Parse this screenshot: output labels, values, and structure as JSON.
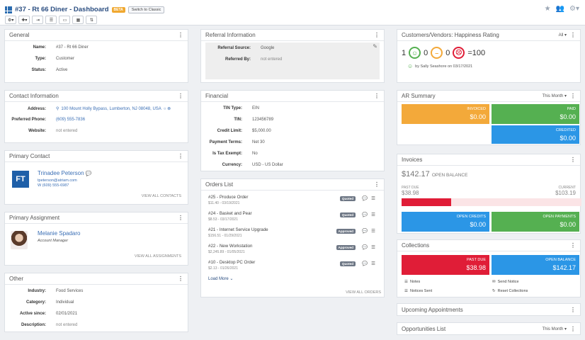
{
  "header": {
    "title": "#37 - Rt 66 Diner - Dashboard",
    "beta_badge": "BETA",
    "switch_button": "Switch to Classic",
    "toolbar": [
      "⚙▾",
      "✚▾",
      "⇥",
      "☰",
      "▭",
      "▦",
      "⇅"
    ]
  },
  "general": {
    "title": "General",
    "fields": [
      {
        "label": "Name:",
        "value": "#37 - Rt 66 Diner"
      },
      {
        "label": "Type:",
        "value": "Customer"
      },
      {
        "label": "Status:",
        "value": "Active"
      }
    ]
  },
  "contact_info": {
    "title": "Contact Information",
    "address_label": "Address:",
    "address": "100 Mount Holly Bypass, Lumberton, NJ 08048, USA",
    "phone_label": "Preferred Phone:",
    "phone": "(609) 555-7836",
    "website_label": "Website:",
    "website": "not entered"
  },
  "primary_contact": {
    "title": "Primary Contact",
    "initials": "FT",
    "name": "Trinadee Peterson",
    "email": "tpeterson@atriam.com",
    "phone": "W (609) 555-6987",
    "view_all": "VIEW ALL CONTACTS"
  },
  "primary_assignment": {
    "title": "Primary Assignment",
    "name": "Melanie Spadaro",
    "role": "Account Manager",
    "view_all": "VIEW ALL ASSIGNMENTS"
  },
  "other": {
    "title": "Other",
    "fields": [
      {
        "label": "Industry:",
        "value": "Food Services"
      },
      {
        "label": "Category:",
        "value": "Individual"
      },
      {
        "label": "Active since:",
        "value": "02/01/2021"
      },
      {
        "label": "Description:",
        "value": "not entered"
      }
    ]
  },
  "referral": {
    "title": "Referral Information",
    "source_label": "Referral Source:",
    "source": "Google",
    "by_label": "Referred By:",
    "by": "not entered"
  },
  "financial": {
    "title": "Financial",
    "fields": [
      {
        "label": "TIN Type:",
        "value": "EIN"
      },
      {
        "label": "TIN:",
        "value": "123456789"
      },
      {
        "label": "Credit Limit:",
        "value": "$5,000.00"
      },
      {
        "label": "Payment Terms:",
        "value": "Net 30"
      },
      {
        "label": "Is Tax Exempt:",
        "value": "No"
      },
      {
        "label": "Currency:",
        "value": "USD - US Dollar"
      }
    ]
  },
  "orders": {
    "title": "Orders List",
    "items": [
      {
        "name": "#25 - Produce Order",
        "sub": "$11.40 - 03/19/2021",
        "status": "Quoted"
      },
      {
        "name": "#24 - Basket and Pear",
        "sub": "$8.53 - 03/17/2021",
        "status": "Quoted"
      },
      {
        "name": "#21 - Internet Service Upgrade",
        "sub": "$156.51 - 01/29/2021",
        "status": "Approved"
      },
      {
        "name": "#22 - New Workstation",
        "sub": "$2,245.89 - 01/05/2021",
        "status": "Approved"
      },
      {
        "name": "#10 - Desktop PC Order",
        "sub": "$2.13 - 01/26/2021",
        "status": "Quoted"
      }
    ],
    "load_more": "Load More ⌄",
    "view_all": "VIEW ALL ORDERS"
  },
  "happiness": {
    "title": "Customers/Vendors: Happiness Rating",
    "filter": "All ▾",
    "happy": "1",
    "neutral": "0",
    "sad": "0",
    "score": "=100",
    "by_line": "by Sally Seashore on 03/17/2021"
  },
  "ar_summary": {
    "title": "AR Summary",
    "filter": "This Month ▾",
    "invoiced_label": "INVOICED",
    "invoiced": "$0.00",
    "paid_label": "PAID",
    "paid": "$0.00",
    "credited_label": "CREDITED",
    "credited": "$0.00"
  },
  "invoices": {
    "title": "Invoices",
    "open_balance": "$142.17",
    "open_balance_label": "OPEN BALANCE",
    "past_due_label": "PAST DUE",
    "past_due": "$38.98",
    "current_label": "CURRENT",
    "current": "$103.19",
    "past_due_fraction": 0.274,
    "open_credits_label": "OPEN CREDITS",
    "open_credits": "$0.00",
    "open_payments_label": "OPEN PAYMENTS",
    "open_payments": "$0.00"
  },
  "collections": {
    "title": "Collections",
    "past_due_label": "PAST DUE",
    "past_due": "$38.98",
    "open_balance_label": "OPEN BALANCE",
    "open_balance": "$142.17",
    "notes": "Notes",
    "send_notice": "Send Notice",
    "notices_sent": "Notices Sent",
    "reset": "Reset Collections"
  },
  "upcoming": {
    "title": "Upcoming Appointments"
  },
  "opportunities": {
    "title": "Opportunities List",
    "filter": "This Month ▾"
  },
  "colors": {
    "orange": "#f3a93a",
    "green": "#55b051",
    "blue": "#2b96e6",
    "red": "#e01d37",
    "brand": "#2a4d80"
  }
}
